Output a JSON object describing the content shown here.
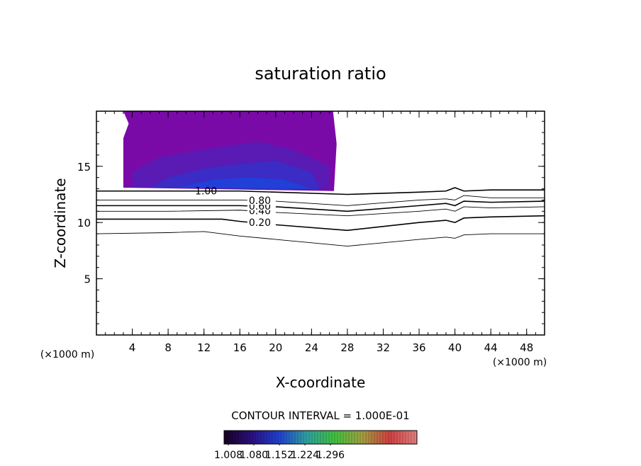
{
  "chart_data": {
    "type": "contour",
    "title": "saturation ratio",
    "xlabel": "X-coordinate",
    "ylabel": "Z-coordinate",
    "xunit": "(×1000 m)",
    "yunit": "(×1000 m)",
    "xlim": [
      0,
      50
    ],
    "ylim": [
      0,
      19.9
    ],
    "xticks": [
      4,
      8,
      12,
      16,
      20,
      24,
      28,
      32,
      36,
      40,
      44,
      48
    ],
    "yticks": [
      5,
      10,
      15
    ],
    "filled": [
      {
        "color": "#7a0aa8",
        "x": [
          3,
          3.6,
          3,
          3,
          26.5,
          26.8,
          26.4
        ],
        "y": [
          19.9,
          18.8,
          17.5,
          13.1,
          12.8,
          17,
          19.9
        ]
      },
      {
        "color": "#5a1ab4",
        "x": [
          4,
          26,
          26,
          22,
          18,
          12,
          7,
          4
        ],
        "y": [
          13.1,
          12.9,
          15,
          16.5,
          17.2,
          16.5,
          15.8,
          14.5
        ]
      },
      {
        "color": "#3a2cc4",
        "x": [
          6,
          25,
          24,
          20,
          16,
          12,
          8
        ],
        "y": [
          13.1,
          12.9,
          14.5,
          15.5,
          15.2,
          14.8,
          14
        ]
      },
      {
        "color": "#2040d8",
        "x": [
          9,
          24,
          21,
          17,
          13
        ],
        "y": [
          13.1,
          13,
          13.8,
          14,
          13.8
        ]
      }
    ],
    "contours": [
      {
        "level": 0.1,
        "x": [
          0,
          8,
          12,
          16,
          20,
          28,
          36,
          39,
          40,
          41,
          44,
          50
        ],
        "y": [
          9,
          9.1,
          9.2,
          8.8,
          8.5,
          7.9,
          8.5,
          8.7,
          8.6,
          8.9,
          9,
          9
        ]
      },
      {
        "level": 0.2,
        "label": "0.20",
        "x": [
          0,
          8,
          14,
          16,
          20,
          28,
          36,
          39,
          40,
          41,
          44,
          50
        ],
        "y": [
          10.3,
          10.3,
          10.3,
          10.1,
          9.8,
          9.3,
          10,
          10.2,
          10,
          10.4,
          10.5,
          10.6
        ]
      },
      {
        "level": 0.4,
        "label": "0.40",
        "x": [
          0,
          8,
          16,
          20,
          28,
          36,
          39,
          40,
          41,
          44,
          50
        ],
        "y": [
          11,
          11,
          11.1,
          10.9,
          10.6,
          11,
          11.2,
          11,
          11.4,
          11.3,
          11.4
        ]
      },
      {
        "level": 0.6,
        "label": "0.60",
        "x": [
          0,
          8,
          16,
          20,
          28,
          36,
          39,
          40,
          41,
          44,
          50
        ],
        "y": [
          11.5,
          11.5,
          11.5,
          11.4,
          11,
          11.5,
          11.7,
          11.5,
          11.9,
          11.8,
          11.9
        ]
      },
      {
        "level": 0.8,
        "label": "0.80",
        "x": [
          0,
          8,
          16,
          20,
          28,
          36,
          39,
          40,
          41,
          44,
          50
        ],
        "y": [
          12,
          12,
          12,
          11.9,
          11.5,
          12,
          12.1,
          12,
          12.4,
          12.2,
          12.2
        ]
      },
      {
        "level": 1.0,
        "label": "1.00",
        "x": [
          0,
          8,
          16,
          20,
          28,
          36,
          39,
          40,
          41,
          44,
          50
        ],
        "y": [
          12.8,
          12.8,
          12.8,
          12.7,
          12.5,
          12.7,
          12.8,
          13.1,
          12.8,
          12.9,
          12.9
        ]
      }
    ],
    "contour_interval": "CONTOUR INTERVAL = 1.000E-01",
    "colorbar": {
      "lim": [
        0.996,
        1.54
      ],
      "colormap": [
        "#1a0022",
        "#2a1080",
        "#2040d0",
        "#30a0a0",
        "#40c040",
        "#a0a040",
        "#d04040",
        "#e08080"
      ],
      "ticks": [
        1.008,
        {
          "value": 1.08,
          "label": "1.080"
        },
        1.152,
        1.224,
        1.296
      ]
    }
  }
}
